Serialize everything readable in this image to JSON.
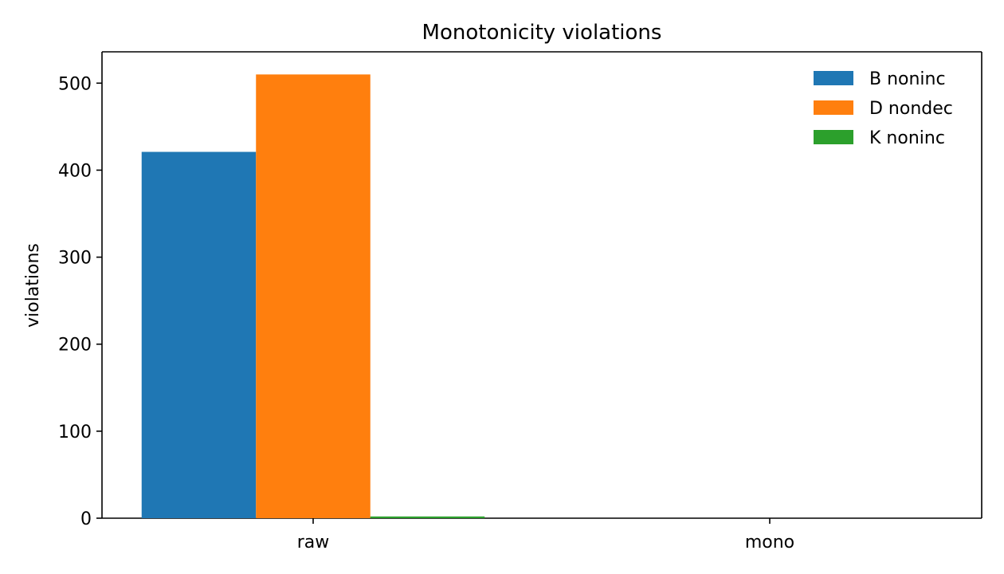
{
  "chart_data": {
    "type": "bar",
    "title": "Monotonicity violations",
    "xlabel": "",
    "ylabel": "violations",
    "categories": [
      "raw",
      "mono"
    ],
    "series": [
      {
        "name": "B noninc",
        "color": "#1f77b4",
        "values": [
          421,
          0
        ]
      },
      {
        "name": "D nondec",
        "color": "#ff7f0e",
        "values": [
          510,
          0
        ]
      },
      {
        "name": "K noninc",
        "color": "#2ca02c",
        "values": [
          2,
          0
        ]
      }
    ],
    "ylim": [
      0,
      536
    ],
    "yticks": [
      0,
      100,
      200,
      300,
      400,
      500
    ],
    "grid": false,
    "legend_position": "top-right"
  }
}
